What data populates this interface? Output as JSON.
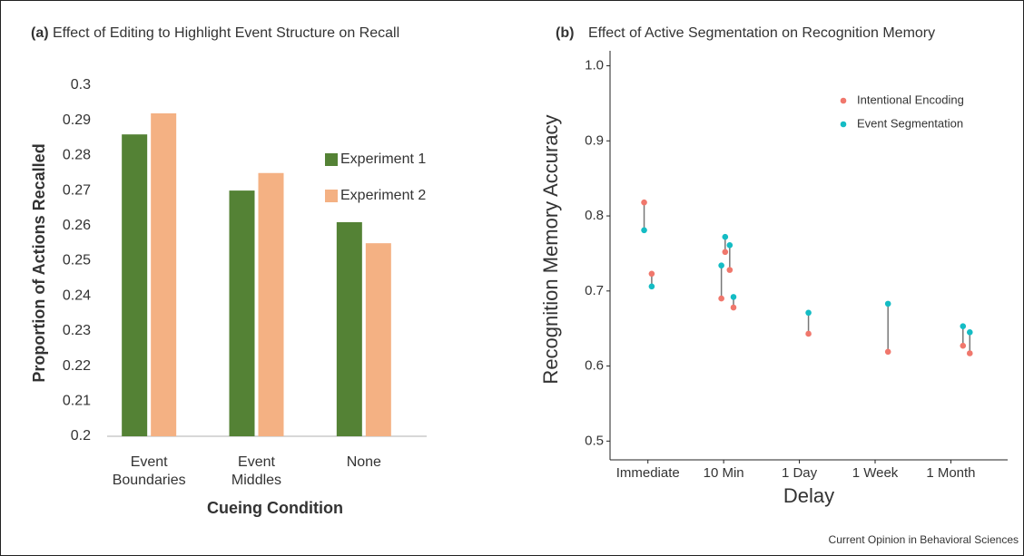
{
  "chart_data": [
    {
      "type": "bar",
      "panel": "(a)",
      "title": "Effect of Editing to Highlight Event Structure on Recall",
      "x_label": "Cueing Condition",
      "y_label": "Proportion of Actions Recalled",
      "categories": [
        "Event Boundaries",
        "Event Middles",
        "None"
      ],
      "series": [
        {
          "name": "Experiment 1",
          "color": "#548235",
          "values": [
            0.286,
            0.27,
            0.261
          ]
        },
        {
          "name": "Experiment 2",
          "color": "#f4b183",
          "values": [
            0.292,
            0.275,
            0.255
          ]
        }
      ],
      "ylim": [
        0.2,
        0.3
      ],
      "yticks": [
        0.2,
        0.21,
        0.22,
        0.23,
        0.24,
        0.25,
        0.26,
        0.27,
        0.28,
        0.29,
        0.3
      ],
      "grid": false,
      "legend": "right"
    },
    {
      "type": "dot",
      "panel": "(b)",
      "title": "Effect of Active Segmentation on Recognition Memory",
      "x_label": "Delay",
      "y_label": "Recognition Memory Accuracy",
      "x": [
        0.95,
        1.05,
        1.97,
        2.02,
        2.08,
        2.13,
        3.12,
        4.17,
        5.16,
        5.25
      ],
      "series": [
        {
          "name": "Intentional Encoding",
          "color": "#f0776c",
          "values": [
            0.818,
            0.723,
            0.69,
            0.752,
            0.728,
            0.678,
            0.643,
            0.619,
            0.627,
            0.617
          ]
        },
        {
          "name": "Event Segmentation",
          "color": "#14bcc4",
          "values": [
            0.781,
            0.706,
            0.734,
            0.772,
            0.761,
            0.692,
            0.671,
            0.683,
            0.653,
            0.645
          ]
        }
      ],
      "connector_color": "#777777",
      "xlim": [
        0.5,
        5.75
      ],
      "xticks": [
        {
          "value": 1,
          "label": "Immediate"
        },
        {
          "value": 2,
          "label": "10 Min"
        },
        {
          "value": 3,
          "label": "1 Day"
        },
        {
          "value": 4,
          "label": "1 Week"
        },
        {
          "value": 5,
          "label": "1 Month"
        }
      ],
      "ylim": [
        0.475,
        1.02
      ],
      "yticks": [
        0.5,
        0.6,
        0.7,
        0.8,
        0.9,
        {
          "value": 1,
          "label": "1.0"
        }
      ],
      "grid": false,
      "legend": "top-right"
    }
  ],
  "source": "Current Opinion in Behavioral Sciences"
}
